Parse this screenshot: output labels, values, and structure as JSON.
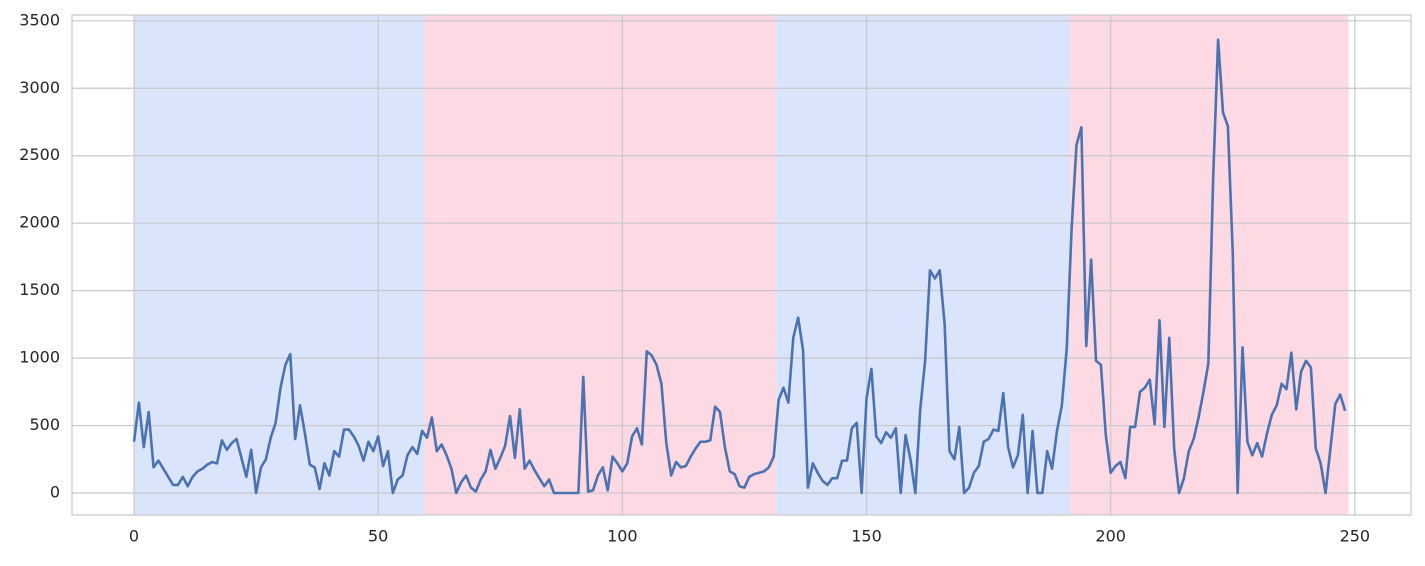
{
  "chart_data": {
    "type": "line",
    "x": [
      0,
      1,
      2,
      3,
      4,
      5,
      6,
      7,
      8,
      9,
      10,
      11,
      12,
      13,
      14,
      15,
      16,
      17,
      18,
      19,
      20,
      21,
      22,
      23,
      24,
      25,
      26,
      27,
      28,
      29,
      30,
      31,
      32,
      33,
      34,
      35,
      36,
      37,
      38,
      39,
      40,
      41,
      42,
      43,
      44,
      45,
      46,
      47,
      48,
      49,
      50,
      51,
      52,
      53,
      54,
      55,
      56,
      57,
      58,
      59,
      60,
      61,
      62,
      63,
      64,
      65,
      66,
      67,
      68,
      69,
      70,
      71,
      72,
      73,
      74,
      75,
      76,
      77,
      78,
      79,
      80,
      81,
      82,
      83,
      84,
      85,
      86,
      87,
      88,
      89,
      90,
      91,
      92,
      93,
      94,
      95,
      96,
      97,
      98,
      99,
      100,
      101,
      102,
      103,
      104,
      105,
      106,
      107,
      108,
      109,
      110,
      111,
      112,
      113,
      114,
      115,
      116,
      117,
      118,
      119,
      120,
      121,
      122,
      123,
      124,
      125,
      126,
      127,
      128,
      129,
      130,
      131,
      132,
      133,
      134,
      135,
      136,
      137,
      138,
      139,
      140,
      141,
      142,
      143,
      144,
      145,
      146,
      147,
      148,
      149,
      150,
      151,
      152,
      153,
      154,
      155,
      156,
      157,
      158,
      159,
      160,
      161,
      162,
      163,
      164,
      165,
      166,
      167,
      168,
      169,
      170,
      171,
      172,
      173,
      174,
      175,
      176,
      177,
      178,
      179,
      180,
      181,
      182,
      183,
      184,
      185,
      186,
      187,
      188,
      189,
      190,
      191,
      192,
      193,
      194,
      195,
      196,
      197,
      198,
      199,
      200,
      201,
      202,
      203,
      204,
      205,
      206,
      207,
      208,
      209,
      210,
      211,
      212,
      213,
      214,
      215,
      216,
      217,
      218,
      219,
      220,
      221,
      222,
      223,
      224,
      225,
      226,
      227,
      228,
      229,
      230,
      231,
      232,
      233,
      234,
      235,
      236,
      237,
      238,
      239,
      240,
      241,
      242,
      243,
      244,
      245,
      246,
      247,
      248
    ],
    "series": [
      {
        "color": "#4c72b0",
        "values": [
          380,
          670,
          340,
          600,
          190,
          240,
          180,
          120,
          60,
          60,
          120,
          50,
          120,
          160,
          180,
          210,
          230,
          220,
          390,
          320,
          370,
          400,
          260,
          120,
          320,
          0,
          190,
          250,
          410,
          520,
          780,
          950,
          1030,
          400,
          650,
          440,
          210,
          190,
          30,
          220,
          130,
          310,
          270,
          470,
          470,
          420,
          350,
          240,
          380,
          310,
          420,
          200,
          310,
          0,
          100,
          130,
          280,
          340,
          290,
          460,
          410,
          560,
          310,
          360,
          280,
          180,
          0,
          80,
          130,
          40,
          10,
          100,
          160,
          320,
          180,
          260,
          350,
          570,
          260,
          620,
          180,
          240,
          170,
          110,
          50,
          100,
          0,
          0,
          0,
          0,
          0,
          0,
          860,
          10,
          20,
          130,
          190,
          20,
          270,
          220,
          160,
          220,
          420,
          480,
          360,
          1050,
          1020,
          950,
          810,
          370,
          130,
          230,
          190,
          200,
          270,
          330,
          380,
          380,
          390,
          640,
          600,
          340,
          160,
          140,
          50,
          40,
          120,
          140,
          150,
          160,
          190,
          270,
          690,
          780,
          670,
          1150,
          1300,
          1060,
          40,
          220,
          150,
          90,
          60,
          110,
          110,
          240,
          240,
          480,
          520,
          0,
          700,
          920,
          420,
          370,
          450,
          410,
          480,
          0,
          430,
          250,
          0,
          620,
          980,
          1650,
          1590,
          1650,
          1250,
          310,
          250,
          490,
          0,
          40,
          150,
          200,
          380,
          400,
          470,
          460,
          740,
          340,
          190,
          280,
          580,
          0,
          460,
          0,
          0,
          310,
          180,
          460,
          650,
          1070,
          1960,
          2580,
          2710,
          1090,
          1730,
          980,
          950,
          430,
          150,
          200,
          230,
          110,
          490,
          490,
          750,
          780,
          840,
          510,
          1280,
          490,
          1150,
          330,
          0,
          110,
          310,
          400,
          560,
          750,
          960,
          2350,
          3360,
          2820,
          2720,
          1780,
          0,
          1080,
          380,
          280,
          370,
          270,
          440,
          580,
          650,
          810,
          770,
          1040,
          620,
          900,
          980,
          930,
          330,
          220,
          0,
          330,
          660,
          730,
          610
        ]
      }
    ],
    "spans": [
      {
        "start": 0,
        "end": 59.5,
        "color": "#dae5fb"
      },
      {
        "start": 59.5,
        "end": 131.5,
        "color": "#fcd9e3"
      },
      {
        "start": 131.5,
        "end": 191.7,
        "color": "#dae5fb"
      },
      {
        "start": 191.7,
        "end": 248.7,
        "color": "#fcd9e3"
      }
    ],
    "xlim": [
      -12.7,
      261.5
    ],
    "ylim": [
      -163,
      3543
    ],
    "xticks": [
      0,
      50,
      100,
      150,
      200,
      250
    ],
    "yticks": [
      0,
      500,
      1000,
      1500,
      2000,
      2500,
      3000,
      3500
    ],
    "grid": true
  }
}
